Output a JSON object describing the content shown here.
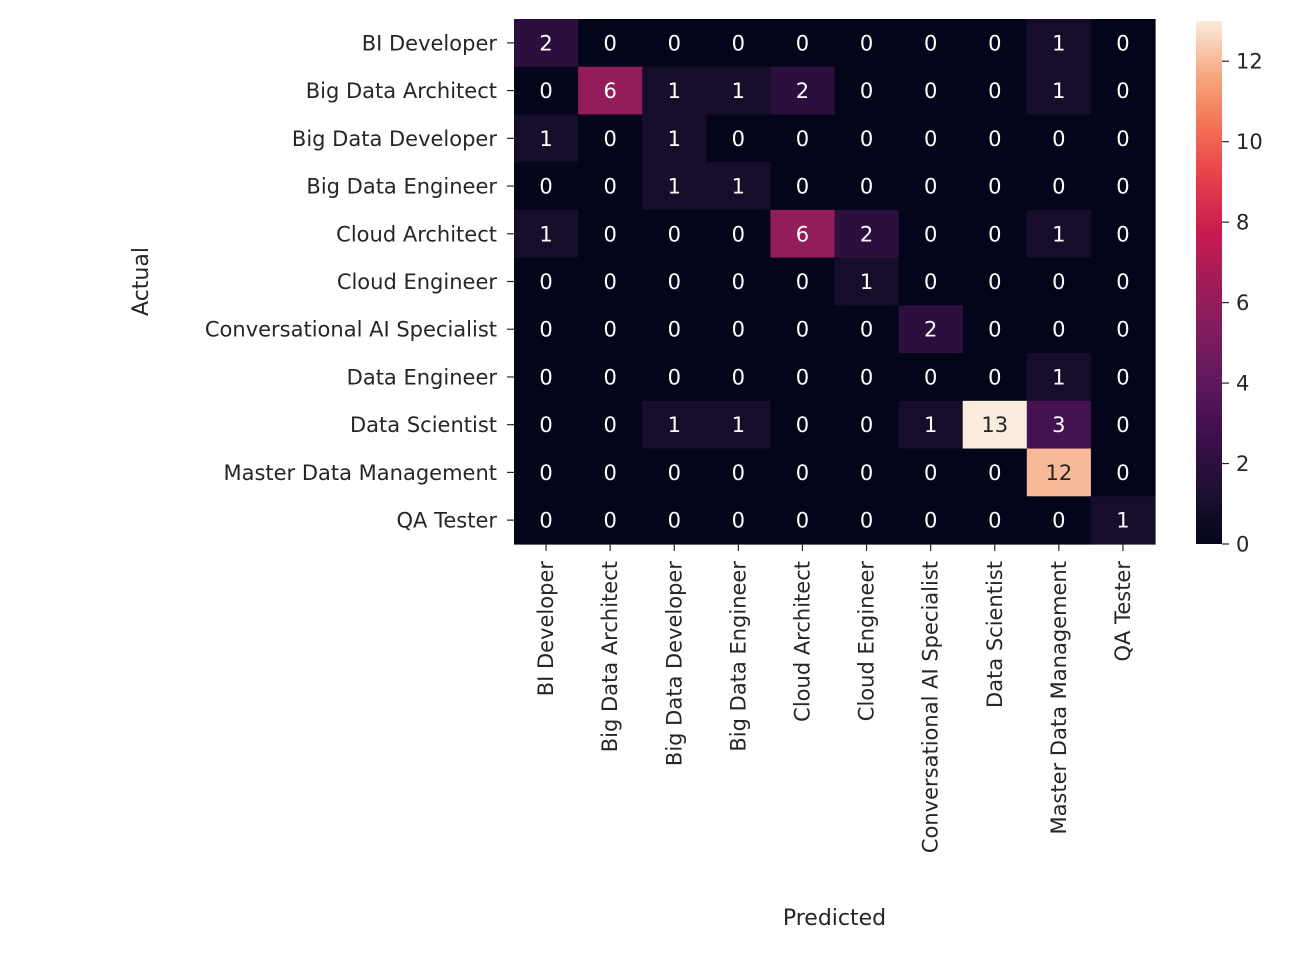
{
  "chart_data": {
    "type": "heatmap",
    "title": "",
    "xlabel": "Predicted",
    "ylabel": "Actual",
    "x_categories": [
      "BI Developer",
      "Big Data Architect",
      "Big Data Developer",
      "Big Data Engineer",
      "Cloud Architect",
      "Cloud Engineer",
      "Conversational AI Specialist",
      "Data Scientist",
      "Master Data Management",
      "QA Tester"
    ],
    "y_categories": [
      "BI Developer",
      "Big Data Architect",
      "Big Data Developer",
      "Big Data Engineer",
      "Cloud Architect",
      "Cloud Engineer",
      "Conversational AI Specialist",
      "Data Engineer",
      "Data Scientist",
      "Master Data Management",
      "QA Tester"
    ],
    "values": [
      [
        2,
        0,
        0,
        0,
        0,
        0,
        0,
        0,
        1,
        0
      ],
      [
        0,
        6,
        1,
        1,
        2,
        0,
        0,
        0,
        1,
        0
      ],
      [
        1,
        0,
        1,
        0,
        0,
        0,
        0,
        0,
        0,
        0
      ],
      [
        0,
        0,
        1,
        1,
        0,
        0,
        0,
        0,
        0,
        0
      ],
      [
        1,
        0,
        0,
        0,
        6,
        2,
        0,
        0,
        1,
        0
      ],
      [
        0,
        0,
        0,
        0,
        0,
        1,
        0,
        0,
        0,
        0
      ],
      [
        0,
        0,
        0,
        0,
        0,
        0,
        2,
        0,
        0,
        0
      ],
      [
        0,
        0,
        0,
        0,
        0,
        0,
        0,
        0,
        1,
        0
      ],
      [
        0,
        0,
        1,
        1,
        0,
        0,
        1,
        13,
        3,
        0
      ],
      [
        0,
        0,
        0,
        0,
        0,
        0,
        0,
        0,
        12,
        0
      ],
      [
        0,
        0,
        0,
        0,
        0,
        0,
        0,
        0,
        0,
        1
      ]
    ],
    "annotated": true,
    "colormap": "rocket",
    "colorbar": {
      "range": [
        0,
        13
      ],
      "ticks": [
        0,
        2,
        4,
        6,
        8,
        10,
        12
      ],
      "placement": "right"
    },
    "grid": false
  }
}
